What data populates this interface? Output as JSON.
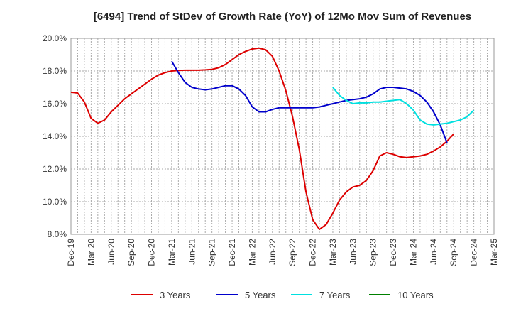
{
  "chart_data": {
    "type": "line",
    "title": "[6494]  Trend of StDev of Growth Rate (YoY) of 12Mo Mov Sum of Revenues",
    "xlabel": "",
    "ylabel": "",
    "y_unit": "%",
    "ylim": [
      8.0,
      20.0
    ],
    "y_ticks": [
      "8.0%",
      "10.0%",
      "12.0%",
      "14.0%",
      "16.0%",
      "18.0%",
      "20.0%"
    ],
    "x_ticks": [
      "Dec-19",
      "Mar-20",
      "Jun-20",
      "Sep-20",
      "Dec-20",
      "Mar-21",
      "Jun-21",
      "Sep-21",
      "Dec-21",
      "Mar-22",
      "Jun-22",
      "Sep-22",
      "Dec-22",
      "Mar-23",
      "Jun-23",
      "Sep-23",
      "Dec-23",
      "Mar-24",
      "Jun-24",
      "Sep-24",
      "Dec-24",
      "Mar-25"
    ],
    "grid": true,
    "legend_position": "bottom",
    "series": [
      {
        "name": "3 Years",
        "color": "#dd0000",
        "start_index": 0,
        "values": [
          16.7,
          16.65,
          16.1,
          15.1,
          14.8,
          15.0,
          15.5,
          15.9,
          16.3,
          16.6,
          16.9,
          17.2,
          17.5,
          17.75,
          17.9,
          18.0,
          18.03,
          18.05,
          18.05,
          18.05,
          18.07,
          18.1,
          18.2,
          18.4,
          18.7,
          19.0,
          19.2,
          19.35,
          19.4,
          19.3,
          18.9,
          18.0,
          16.8,
          15.2,
          13.2,
          10.6,
          8.9,
          8.3,
          8.6,
          9.3,
          10.1,
          10.6,
          10.9,
          11.0,
          11.3,
          11.9,
          12.8,
          13.0,
          12.9,
          12.75,
          12.7,
          12.75,
          12.8,
          12.9,
          13.1,
          13.35,
          13.7,
          14.15
        ]
      },
      {
        "name": "5 Years",
        "color": "#0000cc",
        "start_index": 15,
        "values": [
          18.6,
          17.9,
          17.3,
          17.0,
          16.9,
          16.85,
          16.9,
          17.0,
          17.1,
          17.1,
          16.9,
          16.5,
          15.8,
          15.5,
          15.5,
          15.65,
          15.75,
          15.75,
          15.75,
          15.75,
          15.75,
          15.75,
          15.8,
          15.9,
          16.0,
          16.1,
          16.2,
          16.25,
          16.3,
          16.4,
          16.6,
          16.9,
          17.0,
          17.0,
          16.95,
          16.9,
          16.75,
          16.5,
          16.1,
          15.5,
          14.7,
          13.6
        ]
      },
      {
        "name": "7 Years",
        "color": "#00e0e0",
        "start_index": 39,
        "values": [
          17.0,
          16.5,
          16.2,
          16.0,
          16.05,
          16.05,
          16.1,
          16.1,
          16.15,
          16.2,
          16.25,
          16.0,
          15.6,
          15.0,
          14.75,
          14.7,
          14.75,
          14.8,
          14.9,
          15.0,
          15.2,
          15.6
        ]
      },
      {
        "name": "10 Years",
        "color": "#008000",
        "start_index": 0,
        "values": []
      }
    ]
  }
}
